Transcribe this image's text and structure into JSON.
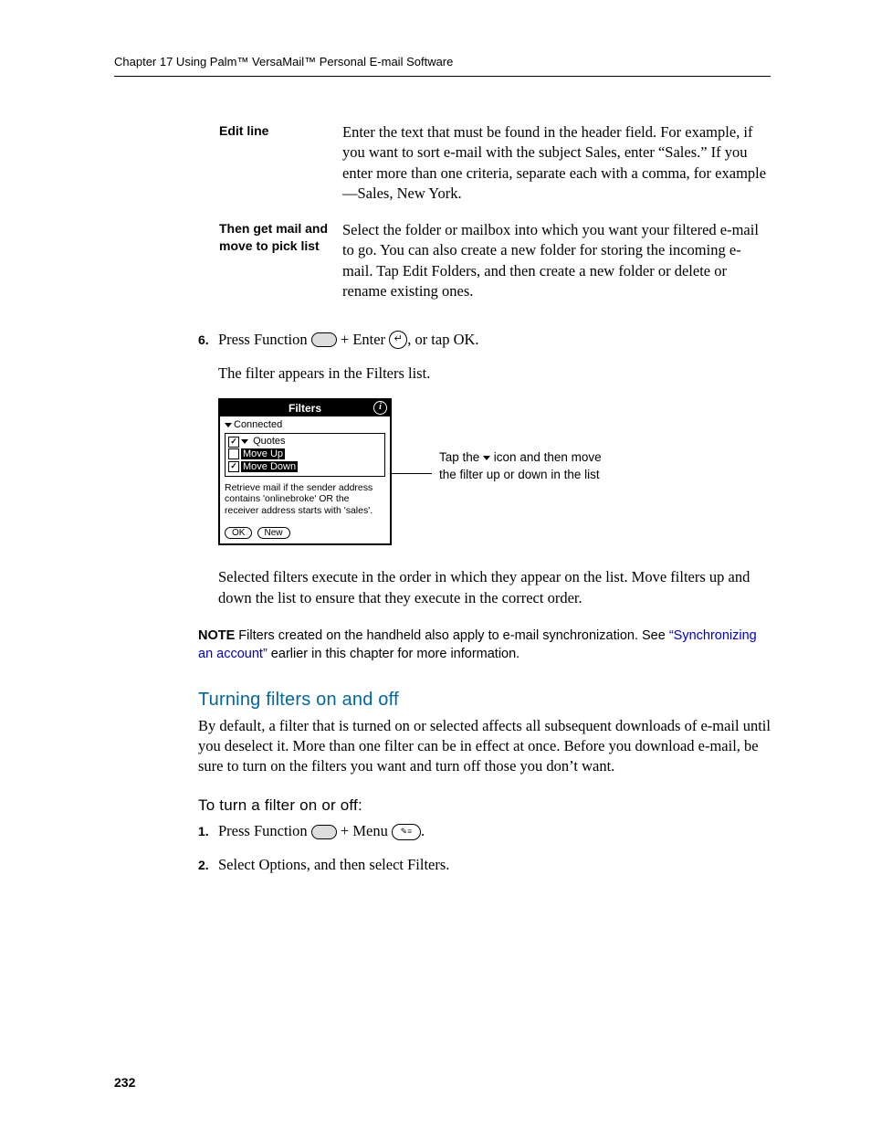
{
  "header": "Chapter 17   Using Palm™ VersaMail™ Personal E-mail Software",
  "definitions": [
    {
      "term": "Edit line",
      "desc": "Enter the text that must be found in the header field. For example, if you want to sort e-mail with the subject Sales, enter “Sales.” If you enter more than one criteria, separate each with a comma, for example—Sales, New York."
    },
    {
      "term": "Then get mail and move to pick list",
      "desc": "Select the folder or mailbox into which you want your filtered e-mail to go. You can also create a new folder for storing the incoming e-mail. Tap Edit Folders, and then create a new folder or delete or rename existing ones."
    }
  ],
  "step6": {
    "num": "6.",
    "prefix": "Press Function ",
    "mid": " + Enter ",
    "suffix": ", or tap OK."
  },
  "step6_follow": "The filter appears in the Filters list.",
  "palm": {
    "title": "Filters",
    "connected": "Connected",
    "items": [
      {
        "checked": true,
        "label": "Quotes",
        "dropdown": true
      },
      {
        "checked": false,
        "label": "Move Up",
        "selected": true
      },
      {
        "checked": true,
        "label": "Move Down",
        "selected": true
      }
    ],
    "rule": "Retrieve mail if the sender address contains 'onlinebroke' OR the receiver address starts with 'sales'.",
    "buttons": [
      "OK",
      "New"
    ]
  },
  "callout": {
    "l1": "Tap the ",
    "l2": " icon and then move the filter up or down in the list"
  },
  "para_after_shot": "Selected filters execute in the order in which they appear on the list. Move filters up and down the list to ensure that they execute in the correct order.",
  "note": {
    "label": "NOTE",
    "before_link": "   Filters created on the handheld also apply to e-mail synchronization. See ",
    "link": "“Synchronizing an account”",
    "after_link": " earlier in this chapter for more information."
  },
  "h3": "Turning filters on and off",
  "h3_body": "By default, a filter that is turned on or selected affects all subsequent downloads of e-mail until you deselect it. More than one filter can be in effect at once. Before you download e-mail, be sure to turn on the filters you want and turn off those you don’t want.",
  "h4": "To turn a filter on or off:",
  "step1": {
    "num": "1.",
    "prefix": "Press Function ",
    "mid": " + Menu ",
    "suffix": "."
  },
  "step2": {
    "num": "2.",
    "text": "Select Options, and then select Filters."
  },
  "page_number": "232"
}
